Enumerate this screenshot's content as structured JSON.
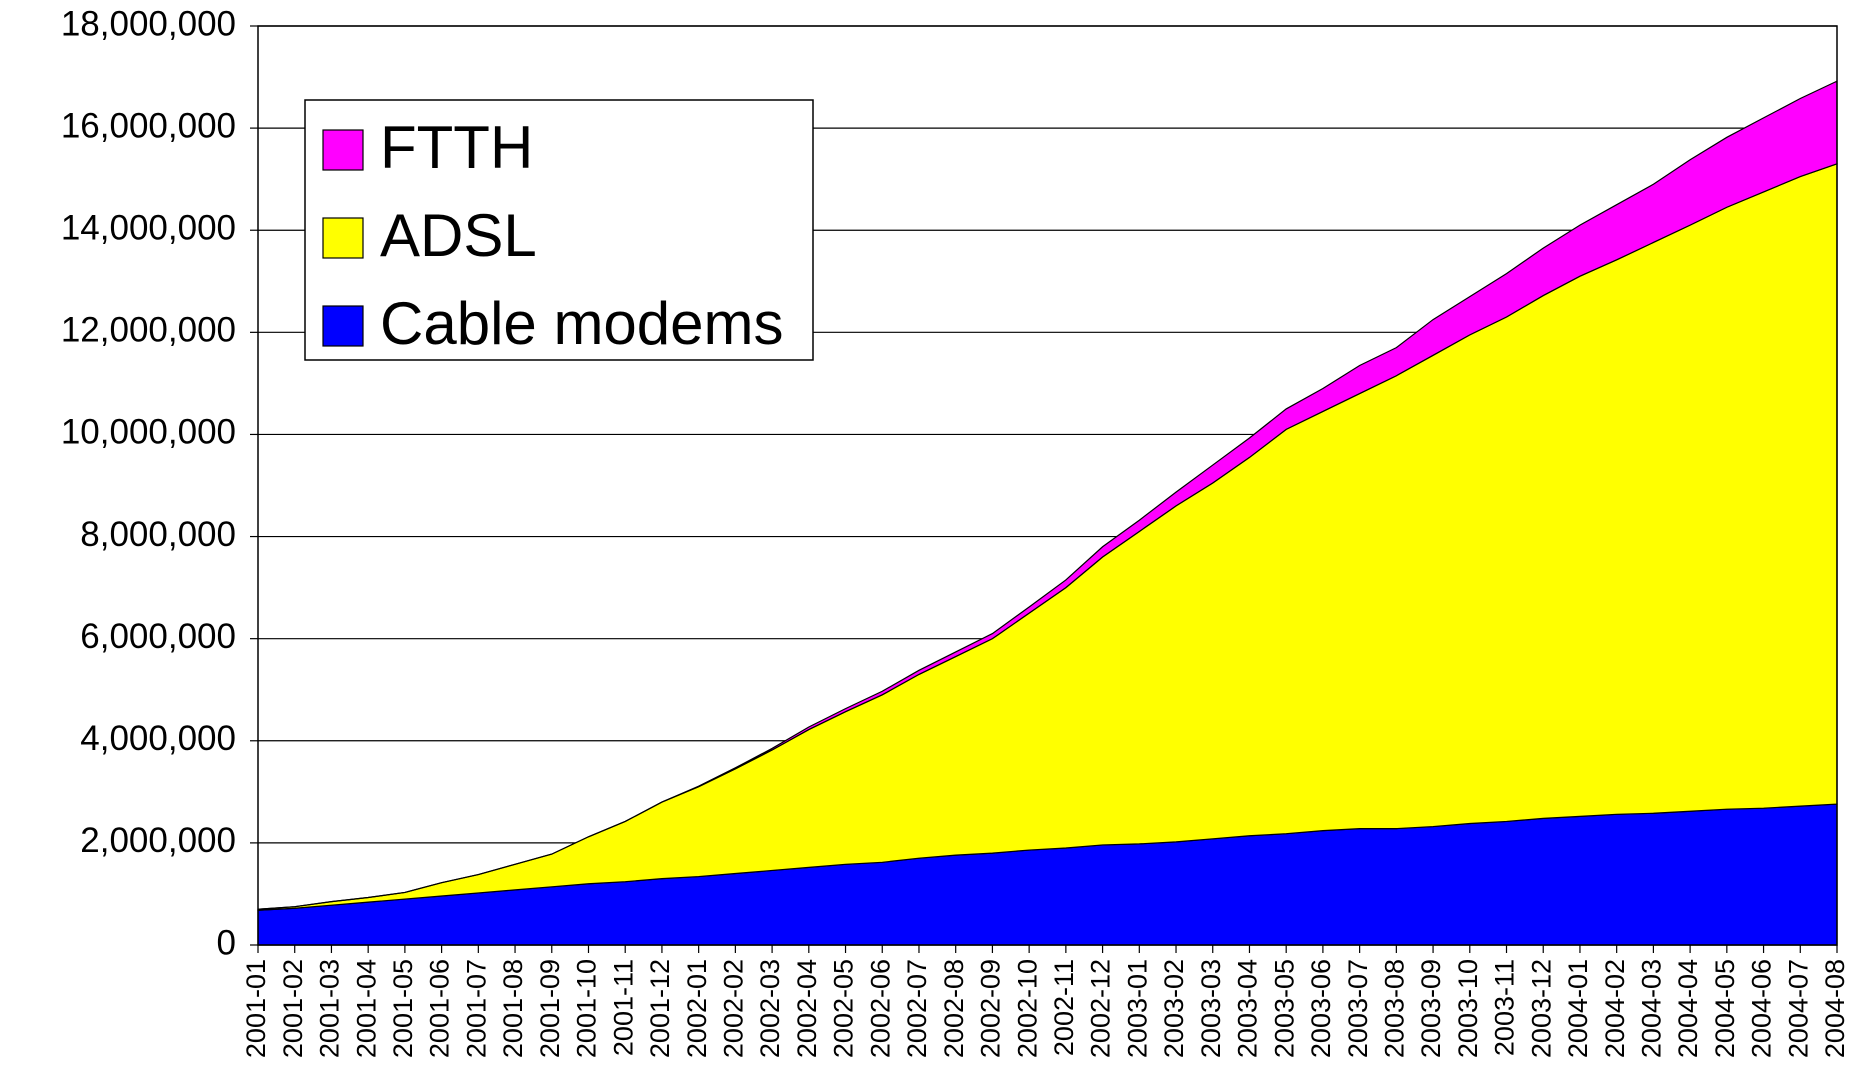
{
  "chart_data": {
    "type": "stacked_area",
    "categories": [
      "2001-01",
      "2001-02",
      "2001-03",
      "2001-04",
      "2001-05",
      "2001-06",
      "2001-07",
      "2001-08",
      "2001-09",
      "2001-10",
      "2001-11",
      "2001-12",
      "2002-01",
      "2002-02",
      "2002-03",
      "2002-04",
      "2002-05",
      "2002-06",
      "2002-07",
      "2002-08",
      "2002-09",
      "2002-10",
      "2002-11",
      "2002-12",
      "2003-01",
      "2003-02",
      "2003-03",
      "2003-04",
      "2003-05",
      "2003-06",
      "2003-07",
      "2003-08",
      "2003-09",
      "2003-10",
      "2003-11",
      "2003-12",
      "2004-01",
      "2004-02",
      "2004-03",
      "2004-04",
      "2004-05",
      "2004-06",
      "2004-07",
      "2004-08"
    ],
    "series": [
      {
        "name": "Cable modems",
        "color": "#0000ff",
        "values": [
          680000,
          720000,
          780000,
          840000,
          900000,
          960000,
          1020000,
          1080000,
          1140000,
          1200000,
          1240000,
          1300000,
          1340000,
          1400000,
          1460000,
          1520000,
          1580000,
          1620000,
          1700000,
          1760000,
          1800000,
          1860000,
          1900000,
          1960000,
          1980000,
          2020000,
          2080000,
          2140000,
          2180000,
          2240000,
          2280000,
          2280000,
          2320000,
          2380000,
          2420000,
          2480000,
          2520000,
          2560000,
          2580000,
          2620000,
          2660000,
          2680000,
          2720000,
          2760000
        ]
      },
      {
        "name": "ADSL",
        "color": "#ffff00",
        "values": [
          20000,
          30000,
          70000,
          90000,
          130000,
          260000,
          360000,
          500000,
          640000,
          920000,
          1180000,
          1500000,
          1760000,
          2050000,
          2360000,
          2700000,
          2990000,
          3280000,
          3600000,
          3890000,
          4200000,
          4640000,
          5100000,
          5640000,
          6120000,
          6580000,
          6970000,
          7410000,
          7920000,
          8210000,
          8520000,
          8870000,
          9230000,
          9570000,
          9880000,
          10240000,
          10580000,
          10860000,
          11180000,
          11480000,
          11790000,
          12070000,
          12330000,
          12540000
        ]
      },
      {
        "name": "FTTH",
        "color": "#ff00ff",
        "values": [
          0,
          0,
          0,
          0,
          0,
          0,
          0,
          0,
          0,
          0,
          0,
          0,
          10000,
          20000,
          30000,
          50000,
          60000,
          70000,
          80000,
          90000,
          100000,
          120000,
          150000,
          200000,
          220000,
          270000,
          350000,
          380000,
          400000,
          450000,
          550000,
          550000,
          700000,
          750000,
          850000,
          930000,
          1000000,
          1080000,
          1140000,
          1280000,
          1370000,
          1450000,
          1530000,
          1620000
        ]
      }
    ],
    "ylim": [
      0,
      18000000
    ],
    "yticks": [
      0,
      {
        "value": 2000000,
        "label": "2,000,000"
      },
      {
        "value": 4000000,
        "label": "4,000,000"
      },
      {
        "value": 6000000,
        "label": "6,000,000"
      },
      {
        "value": 8000000,
        "label": "8,000,000"
      },
      {
        "value": 10000000,
        "label": "10,000,000"
      },
      {
        "value": 12000000,
        "label": "12,000,000"
      },
      {
        "value": 14000000,
        "label": "14,000,000"
      },
      {
        "value": 16000000,
        "label": "16,000,000"
      },
      {
        "value": 18000000,
        "label": "18,000,000"
      }
    ],
    "grid": true,
    "legend": "upper left"
  }
}
